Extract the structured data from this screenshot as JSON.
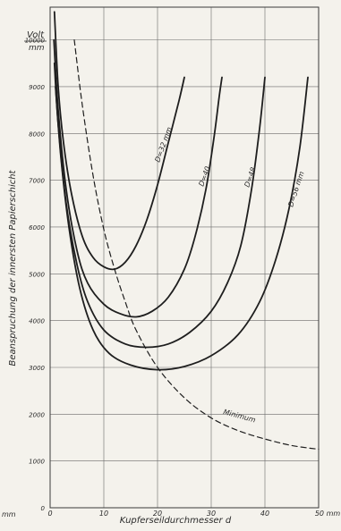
{
  "chart_data": {
    "type": "line",
    "xlabel": "Kupferseildurchmesser  d",
    "ylabel": "Beanspruchung  der innersten  Papierschicht",
    "yunit_top": "Volt",
    "yunit_bottom": "mm",
    "x_unit_right": "50 mm",
    "x_unit_left": "mm",
    "xlim": [
      0,
      50
    ],
    "ylim": [
      0,
      10700
    ],
    "x_ticks": [
      "0",
      "10",
      "20",
      "30",
      "40",
      "50 mm"
    ],
    "y_ticks": [
      "0",
      "1000",
      "2000",
      "3000",
      "4000",
      "5000",
      "6000",
      "7000",
      "8000",
      "9000",
      "10000"
    ],
    "grid": true,
    "series": [
      {
        "name": "D=32 mm",
        "dashed": false,
        "points": [
          [
            0.8,
            10600
          ],
          [
            1.5,
            9000
          ],
          [
            2.5,
            7800
          ],
          [
            4,
            6700
          ],
          [
            6,
            5800
          ],
          [
            8,
            5350
          ],
          [
            10,
            5150
          ],
          [
            12,
            5100
          ],
          [
            14,
            5250
          ],
          [
            16,
            5600
          ],
          [
            18,
            6150
          ],
          [
            20,
            6900
          ],
          [
            22,
            7800
          ],
          [
            24,
            8700
          ],
          [
            25,
            9200
          ]
        ]
      },
      {
        "name": "D=40",
        "dashed": false,
        "points": [
          [
            0.7,
            10000
          ],
          [
            1.5,
            8500
          ],
          [
            3,
            6800
          ],
          [
            5,
            5500
          ],
          [
            7,
            4800
          ],
          [
            10,
            4350
          ],
          [
            13,
            4150
          ],
          [
            16,
            4080
          ],
          [
            19,
            4200
          ],
          [
            22,
            4500
          ],
          [
            25,
            5100
          ],
          [
            27,
            5800
          ],
          [
            29,
            6800
          ],
          [
            30.5,
            7900
          ],
          [
            31.5,
            8800
          ],
          [
            32,
            9200
          ]
        ]
      },
      {
        "name": "D=48",
        "dashed": false,
        "points": [
          [
            0.8,
            9500
          ],
          [
            1.5,
            8200
          ],
          [
            3,
            6500
          ],
          [
            5,
            5200
          ],
          [
            7,
            4400
          ],
          [
            10,
            3800
          ],
          [
            14,
            3500
          ],
          [
            18,
            3430
          ],
          [
            22,
            3500
          ],
          [
            26,
            3750
          ],
          [
            30,
            4200
          ],
          [
            33,
            4800
          ],
          [
            35.5,
            5600
          ],
          [
            37.5,
            6800
          ],
          [
            39,
            8100
          ],
          [
            40,
            9200
          ]
        ]
      },
      {
        "name": "D=56 mm",
        "dashed": false,
        "points": [
          [
            1,
            9000
          ],
          [
            2,
            7500
          ],
          [
            3.5,
            6000
          ],
          [
            5.5,
            4700
          ],
          [
            8,
            3800
          ],
          [
            11,
            3300
          ],
          [
            15,
            3050
          ],
          [
            20,
            2950
          ],
          [
            25,
            3020
          ],
          [
            30,
            3250
          ],
          [
            35,
            3700
          ],
          [
            39,
            4400
          ],
          [
            42,
            5300
          ],
          [
            44.5,
            6400
          ],
          [
            46.5,
            7700
          ],
          [
            48,
            9200
          ]
        ]
      },
      {
        "name": "Minimum",
        "dashed": true,
        "points": [
          [
            4.5,
            10000
          ],
          [
            6,
            8600
          ],
          [
            8,
            7100
          ],
          [
            10,
            5950
          ],
          [
            12,
            5100
          ],
          [
            14,
            4400
          ],
          [
            16,
            3800
          ],
          [
            20,
            3000
          ],
          [
            25,
            2350
          ],
          [
            30,
            1920
          ],
          [
            35,
            1650
          ],
          [
            40,
            1470
          ],
          [
            45,
            1330
          ],
          [
            50,
            1250
          ]
        ]
      }
    ],
    "curve_labels": [
      "D=32 mm",
      "D=40",
      "D=48",
      "D=56 mm",
      "Minimum"
    ]
  }
}
